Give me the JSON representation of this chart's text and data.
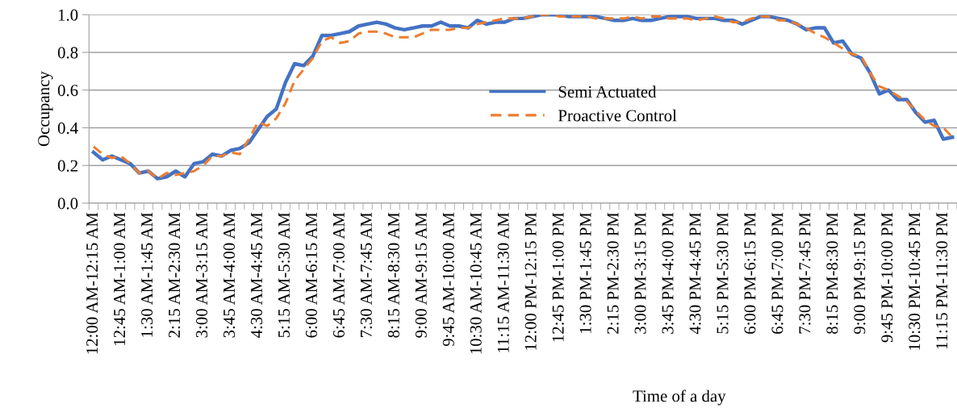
{
  "chart_data": {
    "type": "line",
    "xlabel": "Time of a day",
    "ylabel": "Occupancy",
    "categories": [
      "12:00 AM-12:15 AM",
      null,
      null,
      "12:45 AM-1:00 AM",
      null,
      null,
      "1:30 AM-1:45 AM",
      null,
      null,
      "2:15 AM-2:30 AM",
      null,
      null,
      "3:00 AM-3:15 AM",
      null,
      null,
      "3:45 AM-4:00 AM",
      null,
      null,
      "4:30 AM-4:45 AM",
      null,
      null,
      "5:15 AM-5:30 AM",
      null,
      null,
      "6:00 AM-6:15 AM",
      null,
      null,
      "6:45 AM-7:00 AM",
      null,
      null,
      "7:30 AM-7:45 AM",
      null,
      null,
      "8:15 AM-8:30 AM",
      null,
      null,
      "9:00 AM-9:15 AM",
      null,
      null,
      "9:45 AM-10:00 AM",
      null,
      null,
      "10:30 AM-10:45 AM",
      null,
      null,
      "11:15 AM-11:30 AM",
      null,
      null,
      "12:00 PM-12:15 PM",
      null,
      null,
      "12:45 PM-1:00 PM",
      null,
      null,
      "1:30 PM-1:45 PM",
      null,
      null,
      "2:15 PM-2:30 PM",
      null,
      null,
      "3:00 PM-3:15 PM",
      null,
      null,
      "3:45 PM-4:00 PM",
      null,
      null,
      "4:30 PM-4:45 PM",
      null,
      null,
      "5:15 PM-5:30 PM",
      null,
      null,
      "6:00 PM-6:15 PM",
      null,
      null,
      "6:45 PM-7:00 PM",
      null,
      null,
      "7:30 PM-7:45 PM",
      null,
      null,
      "8:15 PM-8:30 PM",
      null,
      null,
      "9:00 PM-9:15 PM",
      null,
      null,
      "9:45 PM-10:00 PM",
      null,
      null,
      "10:30 PM-10:45 PM",
      null,
      null,
      "11:15 PM-11:30 PM",
      null
    ],
    "series": [
      {
        "name": "Semi Actuated",
        "color": "#4472c4",
        "line_style": "solid",
        "values": [
          0.27,
          0.23,
          0.25,
          0.23,
          0.21,
          0.16,
          0.17,
          0.13,
          0.14,
          0.17,
          0.14,
          0.21,
          0.22,
          0.26,
          0.25,
          0.28,
          0.29,
          0.32,
          0.39,
          0.46,
          0.5,
          0.64,
          0.74,
          0.73,
          0.78,
          0.89,
          0.89,
          0.9,
          0.91,
          0.94,
          0.95,
          0.96,
          0.95,
          0.93,
          0.92,
          0.93,
          0.94,
          0.94,
          0.96,
          0.94,
          0.94,
          0.93,
          0.97,
          0.95,
          0.96,
          0.96,
          0.98,
          0.98,
          0.99,
          1.0,
          1.0,
          1.0,
          0.99,
          0.99,
          0.99,
          0.99,
          0.98,
          0.97,
          0.97,
          0.98,
          0.97,
          0.97,
          0.98,
          0.99,
          0.99,
          0.99,
          0.98,
          0.98,
          0.98,
          0.97,
          0.97,
          0.95,
          0.97,
          0.99,
          0.99,
          0.98,
          0.97,
          0.95,
          0.92,
          0.93,
          0.93,
          0.85,
          0.86,
          0.79,
          0.77,
          0.69,
          0.58,
          0.6,
          0.55,
          0.55,
          0.48,
          0.43,
          0.44,
          0.34,
          0.35
        ]
      },
      {
        "name": "Proactive Control",
        "color": "#ed7d31",
        "line_style": "dashed",
        "values": [
          0.3,
          0.26,
          0.24,
          0.25,
          0.21,
          0.16,
          0.17,
          0.13,
          0.16,
          0.15,
          0.16,
          0.17,
          0.2,
          0.25,
          0.25,
          0.27,
          0.26,
          0.34,
          0.43,
          0.41,
          0.45,
          0.53,
          0.65,
          0.71,
          0.77,
          0.86,
          0.88,
          0.85,
          0.86,
          0.9,
          0.91,
          0.91,
          0.9,
          0.88,
          0.88,
          0.88,
          0.9,
          0.92,
          0.92,
          0.92,
          0.93,
          0.93,
          0.95,
          0.96,
          0.97,
          0.98,
          0.98,
          0.98,
          0.99,
          1.0,
          1.0,
          0.99,
          0.99,
          0.99,
          0.99,
          0.98,
          0.98,
          0.98,
          0.98,
          0.99,
          0.98,
          0.99,
          0.99,
          0.98,
          0.98,
          0.98,
          0.97,
          0.98,
          0.99,
          0.98,
          0.96,
          0.96,
          0.98,
          0.99,
          0.99,
          0.97,
          0.97,
          0.95,
          0.93,
          0.9,
          0.88,
          0.85,
          0.82,
          0.79,
          0.78,
          0.69,
          0.62,
          0.6,
          0.57,
          0.54,
          0.49,
          0.44,
          0.41,
          0.4,
          0.35
        ]
      }
    ],
    "ylim": [
      0,
      1.0
    ],
    "yticks": [
      {
        "value": 0,
        "label": "0.0"
      },
      {
        "value": 0.2,
        "label": "0.2"
      },
      {
        "value": 0.4,
        "label": "0.4"
      },
      {
        "value": 0.6,
        "label": "0.6"
      },
      {
        "value": 0.8,
        "label": "0.8"
      },
      {
        "value": 1.0,
        "label": "1.0"
      }
    ],
    "grid": "y",
    "legend": "center",
    "marker": "none"
  }
}
